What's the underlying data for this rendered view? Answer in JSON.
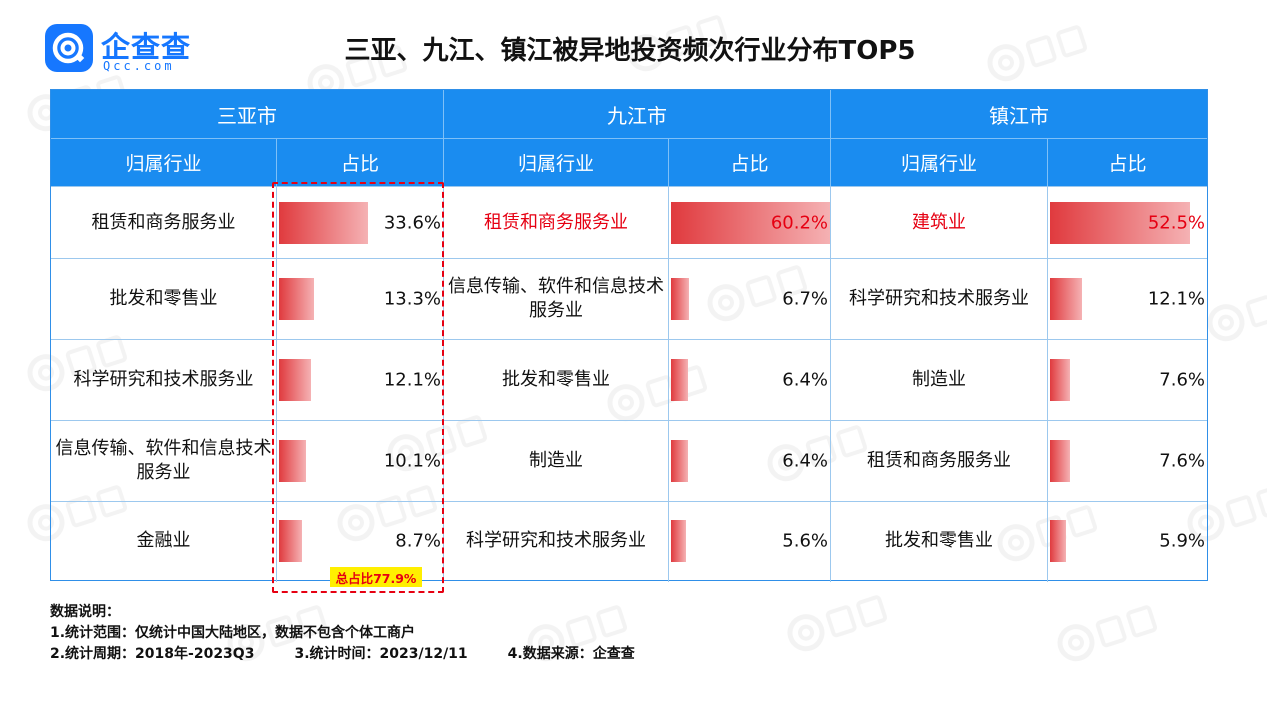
{
  "brand": {
    "name_cn": "企查查",
    "name_en": "Qcc.com"
  },
  "title": "三亚、九江、镇江被异地投资频次行业分布TOP5",
  "header": {
    "industry_label": "归属行业",
    "share_label": "占比"
  },
  "cities": [
    {
      "name": "三亚市",
      "rows": [
        {
          "industry": "租赁和商务服务业",
          "share_text": "33.6%",
          "share": 33.6,
          "highlight": false
        },
        {
          "industry": "批发和零售业",
          "share_text": "13.3%",
          "share": 13.3,
          "highlight": false
        },
        {
          "industry": "科学研究和技术服务业",
          "share_text": "12.1%",
          "share": 12.1,
          "highlight": false
        },
        {
          "industry": "信息传输、软件和信息技术服务业",
          "share_text": "10.1%",
          "share": 10.1,
          "highlight": false
        },
        {
          "industry": "金融业",
          "share_text": "8.7%",
          "share": 8.7,
          "highlight": false
        }
      ]
    },
    {
      "name": "九江市",
      "rows": [
        {
          "industry": "租赁和商务服务业",
          "share_text": "60.2%",
          "share": 60.2,
          "highlight": true
        },
        {
          "industry": "信息传输、软件和信息技术服务业",
          "share_text": "6.7%",
          "share": 6.7,
          "highlight": false
        },
        {
          "industry": "批发和零售业",
          "share_text": "6.4%",
          "share": 6.4,
          "highlight": false
        },
        {
          "industry": "制造业",
          "share_text": "6.4%",
          "share": 6.4,
          "highlight": false
        },
        {
          "industry": "科学研究和技术服务业",
          "share_text": "5.6%",
          "share": 5.6,
          "highlight": false
        }
      ]
    },
    {
      "name": "镇江市",
      "rows": [
        {
          "industry": "建筑业",
          "share_text": "52.5%",
          "share": 52.5,
          "highlight": true
        },
        {
          "industry": "科学研究和技术服务业",
          "share_text": "12.1%",
          "share": 12.1,
          "highlight": false
        },
        {
          "industry": "制造业",
          "share_text": "7.6%",
          "share": 7.6,
          "highlight": false
        },
        {
          "industry": "租赁和商务服务业",
          "share_text": "7.6%",
          "share": 7.6,
          "highlight": false
        },
        {
          "industry": "批发和零售业",
          "share_text": "5.9%",
          "share": 5.9,
          "highlight": false
        }
      ]
    }
  ],
  "total_badge": "总占比77.9%",
  "notes": {
    "heading": "数据说明：",
    "line1": "1.统计范围：仅统计中国大陆地区，数据不包含个体工商户",
    "line2a": "2.统计周期：2018年-2023Q3",
    "line2b": "3.统计时间：2023/12/11",
    "line2c": "4.数据来源：企查查"
  },
  "colors": {
    "header_blue": "#1a8cf0",
    "bar_red": "#e03a3e",
    "highlight_red": "#e60012",
    "badge_yellow": "#ffef00",
    "brand_blue": "#1677ff"
  },
  "icons": [
    "qcc-logo-icon",
    "watermark-logo-icon"
  ]
}
